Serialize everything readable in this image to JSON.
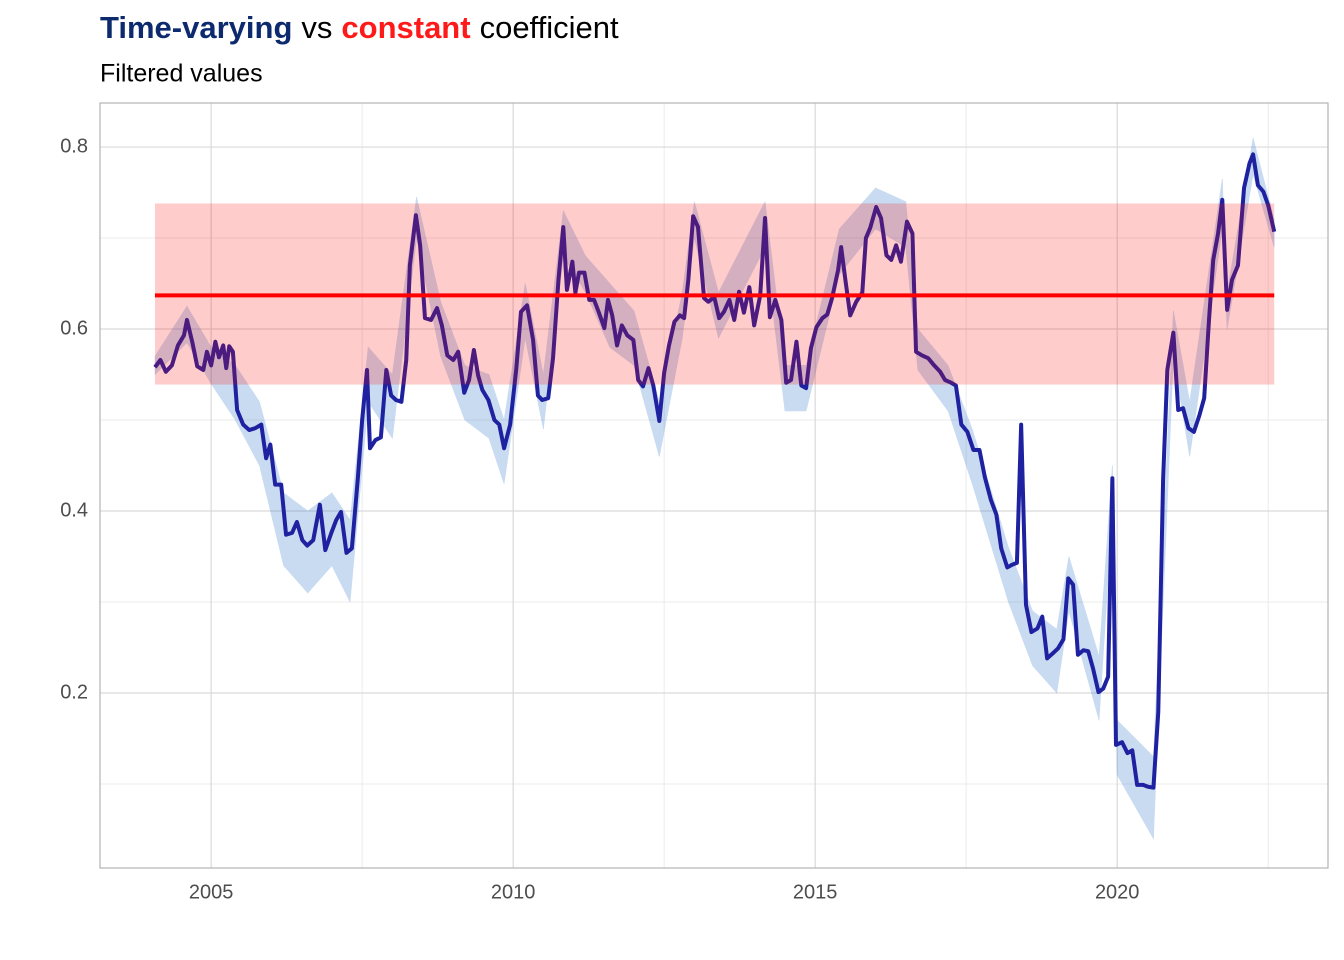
{
  "chart_data": {
    "type": "line",
    "title": [
      {
        "text": "Time-varying",
        "color": "#0d2a6e",
        "bold": true
      },
      {
        "text": "vs",
        "color": "#000000",
        "bold": false
      },
      {
        "text": "constant",
        "color": "#ff1a1a",
        "bold": true
      },
      {
        "text": "coefficient",
        "color": "#000000",
        "bold": false
      }
    ],
    "subtitle": "Filtered values",
    "xlim": [
      2003.16,
      2023.49
    ],
    "ylim": [
      0.0077,
      0.8484
    ],
    "xticks": [
      2005,
      2010,
      2015,
      2020
    ],
    "yticks": [
      0.2,
      0.4,
      0.6,
      0.8
    ],
    "minor_xticks": [
      2007.5,
      2012.5,
      2017.5,
      2022.5
    ],
    "minor_yticks": [
      0.1,
      0.3,
      0.5,
      0.7
    ],
    "grid": true,
    "color": "#1f22a0",
    "x": [
      2004.07,
      2004.16,
      2004.25,
      2004.35,
      2004.45,
      2004.55,
      2004.6,
      2004.69,
      2004.77,
      2004.87,
      2004.93,
      2005.0,
      2005.07,
      2005.13,
      2005.2,
      2005.25,
      2005.3,
      2005.36,
      2005.43,
      2005.53,
      2005.63,
      2005.73,
      2005.83,
      2005.91,
      2005.98,
      2006.06,
      2006.16,
      2006.24,
      2006.34,
      2006.42,
      2006.51,
      2006.59,
      2006.69,
      2006.8,
      2006.89,
      2006.99,
      2007.07,
      2007.15,
      2007.24,
      2007.33,
      2007.43,
      2007.5,
      2007.58,
      2007.63,
      2007.72,
      2007.81,
      2007.9,
      2007.98,
      2008.06,
      2008.15,
      2008.23,
      2008.29,
      2008.39,
      2008.46,
      2008.54,
      2008.64,
      2008.74,
      2008.82,
      2008.91,
      2009.01,
      2009.09,
      2009.19,
      2009.27,
      2009.35,
      2009.42,
      2009.49,
      2009.59,
      2009.69,
      2009.77,
      2009.85,
      2009.95,
      2010.05,
      2010.13,
      2010.23,
      2010.33,
      2010.41,
      2010.48,
      2010.58,
      2010.66,
      2010.75,
      2010.83,
      2010.89,
      2010.98,
      2011.03,
      2011.09,
      2011.18,
      2011.26,
      2011.34,
      2011.42,
      2011.51,
      2011.57,
      2011.64,
      2011.72,
      2011.8,
      2011.89,
      2011.99,
      2012.07,
      2012.15,
      2012.24,
      2012.32,
      2012.42,
      2012.5,
      2012.58,
      2012.67,
      2012.76,
      2012.83,
      2012.9,
      2012.98,
      2013.06,
      2013.16,
      2013.23,
      2013.33,
      2013.41,
      2013.49,
      2013.58,
      2013.66,
      2013.74,
      2013.82,
      2013.91,
      2013.99,
      2014.09,
      2014.17,
      2014.25,
      2014.34,
      2014.44,
      2014.52,
      2014.6,
      2014.69,
      2014.77,
      2014.85,
      2014.93,
      2015.02,
      2015.12,
      2015.2,
      2015.28,
      2015.38,
      2015.43,
      2015.5,
      2015.58,
      2015.68,
      2015.78,
      2015.84,
      2015.91,
      2016.01,
      2016.09,
      2016.18,
      2016.26,
      2016.34,
      2016.42,
      2016.52,
      2016.61,
      2016.67,
      2016.77,
      2016.87,
      2016.97,
      2017.07,
      2017.15,
      2017.25,
      2017.33,
      2017.42,
      2017.52,
      2017.62,
      2017.72,
      2017.81,
      2017.91,
      2018.0,
      2018.08,
      2018.18,
      2018.26,
      2018.34,
      2018.41,
      2018.49,
      2018.58,
      2018.68,
      2018.76,
      2018.84,
      2018.94,
      2019.02,
      2019.11,
      2019.19,
      2019.27,
      2019.35,
      2019.44,
      2019.52,
      2019.6,
      2019.69,
      2019.77,
      2019.85,
      2019.92,
      2019.98,
      2020.08,
      2020.17,
      2020.25,
      2020.33,
      2020.43,
      2020.51,
      2020.6,
      2020.68,
      2020.76,
      2020.83,
      2020.93,
      2021.01,
      2021.09,
      2021.18,
      2021.27,
      2021.36,
      2021.44,
      2021.52,
      2021.59,
      2021.67,
      2021.74,
      2021.82,
      2021.9,
      2022.0,
      2022.1,
      2022.19,
      2022.25,
      2022.33,
      2022.42,
      2022.5,
      2022.6
    ],
    "values": [
      0.558,
      0.566,
      0.553,
      0.56,
      0.582,
      0.593,
      0.61,
      0.585,
      0.559,
      0.555,
      0.575,
      0.56,
      0.586,
      0.569,
      0.582,
      0.557,
      0.581,
      0.575,
      0.511,
      0.495,
      0.489,
      0.491,
      0.495,
      0.458,
      0.473,
      0.429,
      0.429,
      0.374,
      0.376,
      0.388,
      0.368,
      0.362,
      0.368,
      0.407,
      0.357,
      0.376,
      0.39,
      0.399,
      0.354,
      0.359,
      0.437,
      0.5,
      0.555,
      0.469,
      0.478,
      0.481,
      0.555,
      0.527,
      0.522,
      0.52,
      0.566,
      0.67,
      0.725,
      0.692,
      0.612,
      0.61,
      0.623,
      0.604,
      0.571,
      0.566,
      0.575,
      0.53,
      0.544,
      0.577,
      0.549,
      0.533,
      0.522,
      0.5,
      0.495,
      0.469,
      0.495,
      0.555,
      0.619,
      0.626,
      0.588,
      0.527,
      0.522,
      0.524,
      0.568,
      0.654,
      0.712,
      0.643,
      0.674,
      0.64,
      0.662,
      0.662,
      0.632,
      0.632,
      0.618,
      0.601,
      0.632,
      0.615,
      0.582,
      0.604,
      0.593,
      0.588,
      0.544,
      0.537,
      0.557,
      0.538,
      0.499,
      0.552,
      0.582,
      0.608,
      0.615,
      0.612,
      0.654,
      0.724,
      0.712,
      0.634,
      0.63,
      0.635,
      0.612,
      0.619,
      0.632,
      0.61,
      0.641,
      0.618,
      0.646,
      0.604,
      0.637,
      0.722,
      0.613,
      0.632,
      0.61,
      0.541,
      0.544,
      0.586,
      0.538,
      0.535,
      0.579,
      0.602,
      0.612,
      0.616,
      0.634,
      0.665,
      0.69,
      0.654,
      0.615,
      0.63,
      0.64,
      0.7,
      0.711,
      0.734,
      0.722,
      0.681,
      0.676,
      0.692,
      0.674,
      0.718,
      0.705,
      0.575,
      0.571,
      0.568,
      0.56,
      0.553,
      0.544,
      0.541,
      0.538,
      0.495,
      0.487,
      0.467,
      0.467,
      0.437,
      0.412,
      0.396,
      0.359,
      0.338,
      0.341,
      0.343,
      0.495,
      0.297,
      0.267,
      0.271,
      0.284,
      0.238,
      0.244,
      0.249,
      0.259,
      0.326,
      0.319,
      0.242,
      0.247,
      0.246,
      0.227,
      0.201,
      0.205,
      0.218,
      0.436,
      0.143,
      0.146,
      0.134,
      0.137,
      0.099,
      0.099,
      0.097,
      0.096,
      0.179,
      0.434,
      0.555,
      0.596,
      0.511,
      0.513,
      0.491,
      0.487,
      0.505,
      0.524,
      0.61,
      0.676,
      0.705,
      0.742,
      0.621,
      0.654,
      0.67,
      0.755,
      0.782,
      0.792,
      0.758,
      0.751,
      0.736,
      0.707
    ],
    "band": {
      "color": "#3f7fcf",
      "opacity": 0.28,
      "x": [
        2004.07,
        2004.6,
        2005.0,
        2005.4,
        2005.8,
        2006.2,
        2006.6,
        2007.0,
        2007.3,
        2007.6,
        2008.0,
        2008.4,
        2008.8,
        2009.2,
        2009.6,
        2009.85,
        2010.2,
        2010.5,
        2010.83,
        2011.2,
        2011.6,
        2012.0,
        2012.42,
        2012.8,
        2013.0,
        2013.4,
        2014.17,
        2014.5,
        2014.85,
        2015.4,
        2016.0,
        2016.5,
        2016.7,
        2017.2,
        2017.6,
        2018.2,
        2018.6,
        2019.0,
        2019.2,
        2019.7,
        2019.92,
        2020.0,
        2020.6,
        2020.93,
        2021.2,
        2021.74,
        2021.82,
        2022.25,
        2022.6
      ],
      "lower": [
        0.55,
        0.585,
        0.54,
        0.5,
        0.45,
        0.34,
        0.31,
        0.34,
        0.3,
        0.52,
        0.48,
        0.7,
        0.57,
        0.5,
        0.48,
        0.43,
        0.59,
        0.49,
        0.68,
        0.64,
        0.58,
        0.56,
        0.46,
        0.59,
        0.7,
        0.59,
        0.69,
        0.51,
        0.51,
        0.66,
        0.71,
        0.69,
        0.555,
        0.51,
        0.43,
        0.3,
        0.23,
        0.2,
        0.29,
        0.17,
        0.4,
        0.11,
        0.04,
        0.57,
        0.46,
        0.71,
        0.6,
        0.77,
        0.69
      ],
      "upper": [
        0.57,
        0.625,
        0.58,
        0.56,
        0.52,
        0.42,
        0.4,
        0.42,
        0.39,
        0.58,
        0.55,
        0.745,
        0.63,
        0.56,
        0.55,
        0.5,
        0.65,
        0.55,
        0.73,
        0.68,
        0.65,
        0.62,
        0.52,
        0.64,
        0.74,
        0.64,
        0.74,
        0.56,
        0.56,
        0.71,
        0.755,
        0.74,
        0.6,
        0.56,
        0.49,
        0.36,
        0.29,
        0.27,
        0.35,
        0.24,
        0.45,
        0.17,
        0.13,
        0.62,
        0.52,
        0.765,
        0.64,
        0.81,
        0.72
      ]
    },
    "constant": {
      "value": 0.637,
      "lower": 0.539,
      "upper": 0.738,
      "xrange": [
        2004.07,
        2022.6
      ],
      "color": "#ff0000",
      "band_opacity": 0.2
    }
  }
}
